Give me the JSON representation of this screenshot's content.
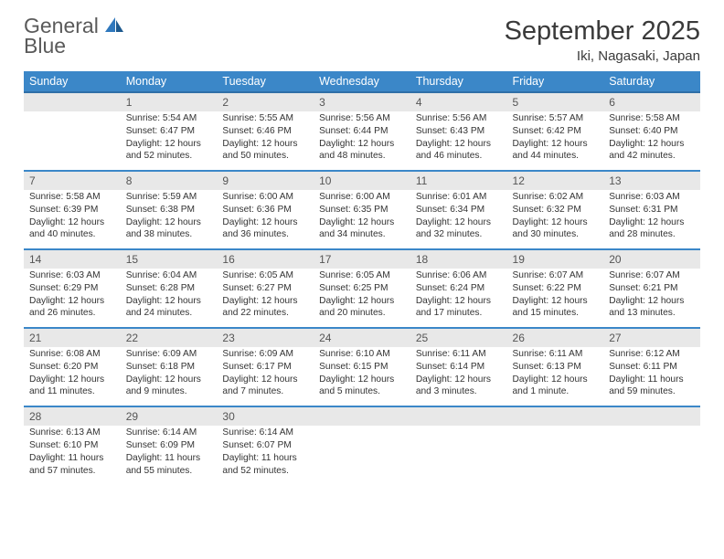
{
  "brand": {
    "part1": "General",
    "part2": "Blue",
    "color_gray": "#5a5a5a",
    "color_blue": "#2f78bd"
  },
  "title": {
    "month": "September 2025",
    "location": "Iki, Nagasaki, Japan"
  },
  "colors": {
    "header_bg": "#3b87c8",
    "header_border": "#2f6fa7",
    "daynum_bg": "#e8e8e8",
    "row_divider": "#3b87c8",
    "text": "#333333",
    "page_bg": "#ffffff"
  },
  "weekdays": [
    "Sunday",
    "Monday",
    "Tuesday",
    "Wednesday",
    "Thursday",
    "Friday",
    "Saturday"
  ],
  "weeks": [
    [
      null,
      {
        "n": "1",
        "sr": "5:54 AM",
        "ss": "6:47 PM",
        "dl": "12 hours and 52 minutes."
      },
      {
        "n": "2",
        "sr": "5:55 AM",
        "ss": "6:46 PM",
        "dl": "12 hours and 50 minutes."
      },
      {
        "n": "3",
        "sr": "5:56 AM",
        "ss": "6:44 PM",
        "dl": "12 hours and 48 minutes."
      },
      {
        "n": "4",
        "sr": "5:56 AM",
        "ss": "6:43 PM",
        "dl": "12 hours and 46 minutes."
      },
      {
        "n": "5",
        "sr": "5:57 AM",
        "ss": "6:42 PM",
        "dl": "12 hours and 44 minutes."
      },
      {
        "n": "6",
        "sr": "5:58 AM",
        "ss": "6:40 PM",
        "dl": "12 hours and 42 minutes."
      }
    ],
    [
      {
        "n": "7",
        "sr": "5:58 AM",
        "ss": "6:39 PM",
        "dl": "12 hours and 40 minutes."
      },
      {
        "n": "8",
        "sr": "5:59 AM",
        "ss": "6:38 PM",
        "dl": "12 hours and 38 minutes."
      },
      {
        "n": "9",
        "sr": "6:00 AM",
        "ss": "6:36 PM",
        "dl": "12 hours and 36 minutes."
      },
      {
        "n": "10",
        "sr": "6:00 AM",
        "ss": "6:35 PM",
        "dl": "12 hours and 34 minutes."
      },
      {
        "n": "11",
        "sr": "6:01 AM",
        "ss": "6:34 PM",
        "dl": "12 hours and 32 minutes."
      },
      {
        "n": "12",
        "sr": "6:02 AM",
        "ss": "6:32 PM",
        "dl": "12 hours and 30 minutes."
      },
      {
        "n": "13",
        "sr": "6:03 AM",
        "ss": "6:31 PM",
        "dl": "12 hours and 28 minutes."
      }
    ],
    [
      {
        "n": "14",
        "sr": "6:03 AM",
        "ss": "6:29 PM",
        "dl": "12 hours and 26 minutes."
      },
      {
        "n": "15",
        "sr": "6:04 AM",
        "ss": "6:28 PM",
        "dl": "12 hours and 24 minutes."
      },
      {
        "n": "16",
        "sr": "6:05 AM",
        "ss": "6:27 PM",
        "dl": "12 hours and 22 minutes."
      },
      {
        "n": "17",
        "sr": "6:05 AM",
        "ss": "6:25 PM",
        "dl": "12 hours and 20 minutes."
      },
      {
        "n": "18",
        "sr": "6:06 AM",
        "ss": "6:24 PM",
        "dl": "12 hours and 17 minutes."
      },
      {
        "n": "19",
        "sr": "6:07 AM",
        "ss": "6:22 PM",
        "dl": "12 hours and 15 minutes."
      },
      {
        "n": "20",
        "sr": "6:07 AM",
        "ss": "6:21 PM",
        "dl": "12 hours and 13 minutes."
      }
    ],
    [
      {
        "n": "21",
        "sr": "6:08 AM",
        "ss": "6:20 PM",
        "dl": "12 hours and 11 minutes."
      },
      {
        "n": "22",
        "sr": "6:09 AM",
        "ss": "6:18 PM",
        "dl": "12 hours and 9 minutes."
      },
      {
        "n": "23",
        "sr": "6:09 AM",
        "ss": "6:17 PM",
        "dl": "12 hours and 7 minutes."
      },
      {
        "n": "24",
        "sr": "6:10 AM",
        "ss": "6:15 PM",
        "dl": "12 hours and 5 minutes."
      },
      {
        "n": "25",
        "sr": "6:11 AM",
        "ss": "6:14 PM",
        "dl": "12 hours and 3 minutes."
      },
      {
        "n": "26",
        "sr": "6:11 AM",
        "ss": "6:13 PM",
        "dl": "12 hours and 1 minute."
      },
      {
        "n": "27",
        "sr": "6:12 AM",
        "ss": "6:11 PM",
        "dl": "11 hours and 59 minutes."
      }
    ],
    [
      {
        "n": "28",
        "sr": "6:13 AM",
        "ss": "6:10 PM",
        "dl": "11 hours and 57 minutes."
      },
      {
        "n": "29",
        "sr": "6:14 AM",
        "ss": "6:09 PM",
        "dl": "11 hours and 55 minutes."
      },
      {
        "n": "30",
        "sr": "6:14 AM",
        "ss": "6:07 PM",
        "dl": "11 hours and 52 minutes."
      },
      null,
      null,
      null,
      null
    ]
  ],
  "labels": {
    "sunrise": "Sunrise:",
    "sunset": "Sunset:",
    "daylight": "Daylight:"
  }
}
